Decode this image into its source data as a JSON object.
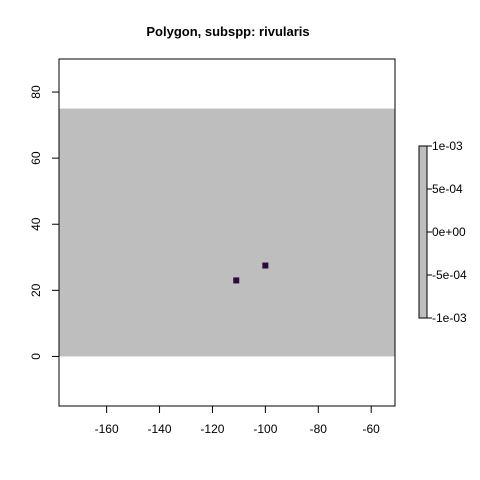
{
  "chart_data": {
    "type": "heatmap",
    "title": "Polygon, subspp: rivularis",
    "xlabel": "",
    "ylabel": "",
    "xlim": [
      -178,
      -51
    ],
    "ylim": [
      -15,
      90
    ],
    "x_ticks": [
      -160,
      -140,
      -120,
      -100,
      -80,
      -60
    ],
    "y_ticks": [
      0,
      20,
      40,
      60,
      80
    ],
    "raster_extent": {
      "x": [
        -178,
        -51
      ],
      "y": [
        0,
        75
      ]
    },
    "background_fill": "#bebebe",
    "cells": [
      {
        "x": -111,
        "y": 23,
        "value": 0
      },
      {
        "x": -100,
        "y": 27.5,
        "value": 0
      }
    ],
    "cell_color": "#2c0a3a",
    "legend": {
      "placement": "right",
      "range": [
        -0.001,
        0.001
      ],
      "tick_values": [
        0.001,
        0.0005,
        0,
        -0.0005,
        -0.001
      ],
      "tick_labels": [
        "1e-03",
        "5e-04",
        "0e+00",
        "-5e-04",
        "-1e-03"
      ],
      "fill": "#bebebe"
    }
  }
}
